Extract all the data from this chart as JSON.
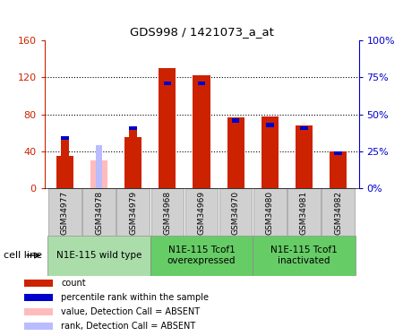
{
  "title": "GDS998 / 1421073_a_at",
  "samples": [
    "GSM34977",
    "GSM34978",
    "GSM34979",
    "GSM34968",
    "GSM34969",
    "GSM34970",
    "GSM34980",
    "GSM34981",
    "GSM34982"
  ],
  "count_values": [
    35,
    0,
    55,
    130,
    122,
    77,
    78,
    68,
    40
  ],
  "rank_values": [
    35,
    0,
    42,
    72,
    72,
    47,
    44,
    42,
    25
  ],
  "absent_count": [
    0,
    30,
    0,
    0,
    0,
    0,
    0,
    0,
    0
  ],
  "absent_rank": [
    0,
    29,
    0,
    0,
    0,
    0,
    0,
    0,
    0
  ],
  "is_absent": [
    false,
    true,
    false,
    false,
    false,
    false,
    false,
    false,
    false
  ],
  "ylim_left": [
    0,
    160
  ],
  "ylim_right": [
    0,
    100
  ],
  "yticks_left": [
    0,
    40,
    80,
    120,
    160
  ],
  "yticks_right": [
    0,
    25,
    50,
    75,
    100
  ],
  "ytick_labels_left": [
    "0",
    "40",
    "80",
    "120",
    "160"
  ],
  "ytick_labels_right": [
    "0%",
    "25%",
    "50%",
    "75%",
    "100%"
  ],
  "groups": [
    {
      "label": "N1E-115 wild type",
      "start": 0,
      "end": 3,
      "color": "#aaddaa"
    },
    {
      "label": "N1E-115 Tcof1\noverexpressed",
      "start": 3,
      "end": 6,
      "color": "#77dd77"
    },
    {
      "label": "N1E-115 Tcof1\ninactivated",
      "start": 6,
      "end": 9,
      "color": "#77dd77"
    }
  ],
  "bar_width": 0.5,
  "count_color": "#cc2200",
  "rank_color": "#0000cc",
  "absent_count_color": "#ffbbbb",
  "absent_rank_color": "#bbbbff",
  "tick_bg_color": "#d0d0d0",
  "plot_bg": "#ffffff",
  "legend_items": [
    {
      "label": "count",
      "color": "#cc2200"
    },
    {
      "label": "percentile rank within the sample",
      "color": "#0000cc"
    },
    {
      "label": "value, Detection Call = ABSENT",
      "color": "#ffbbbb"
    },
    {
      "label": "rank, Detection Call = ABSENT",
      "color": "#bbbbff"
    }
  ],
  "cell_line_label": "cell line",
  "left_label_color": "#cc2200",
  "right_label_color": "#0000cc"
}
